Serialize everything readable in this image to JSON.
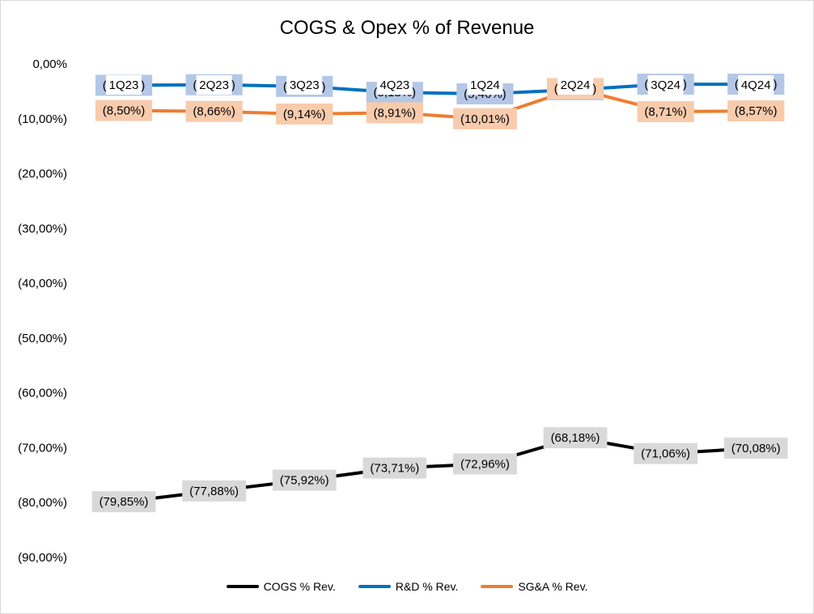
{
  "chart_data": {
    "type": "line",
    "title": "COGS & Opex % of Revenue",
    "categories": [
      "1Q23",
      "2Q23",
      "3Q23",
      "4Q23",
      "1Q24",
      "2Q24",
      "3Q24",
      "4Q24"
    ],
    "y_ticks": [
      "0,00%",
      "(10,00%)",
      "(20,00%)",
      "(30,00%)",
      "(40,00%)",
      "(50,00%)",
      "(60,00%)",
      "(70,00%)",
      "(80,00%)",
      "(90,00%)"
    ],
    "ylim": [
      -90,
      0
    ],
    "grid": false,
    "legend_position": "bottom",
    "series": [
      {
        "name": "COGS % Rev.",
        "color": "#000000",
        "label_bg": "#d9d9d9",
        "values": [
          -79.85,
          -77.88,
          -75.92,
          -73.71,
          -72.96,
          -68.18,
          -71.06,
          -70.08
        ],
        "labels": [
          "(79,85%)",
          "(77,88%)",
          "(75,92%)",
          "(73,71%)",
          "(72,96%)",
          "(68,18%)",
          "(71,06%)",
          "(70,08%)"
        ]
      },
      {
        "name": "R&D % Rev.",
        "color": "#0070c0",
        "label_bg": "#b4c7e7",
        "values": [
          -3.9,
          -3.8,
          -4.1,
          -5.18,
          -5.46,
          -4.7,
          -3.7,
          -3.7
        ],
        "labels": [
          "(3,90%)",
          "(3,80%)",
          "(4,10%)",
          "(5,18%)",
          "(5,46%)",
          "(4,70%)",
          "(3,70%)",
          "(3,70%)"
        ]
      },
      {
        "name": "SG&A % Rev.",
        "color": "#ed7d31",
        "label_bg": "#f8cbad",
        "values": [
          -8.5,
          -8.66,
          -9.14,
          -8.91,
          -10.01,
          -4.5,
          -8.71,
          -8.57
        ],
        "labels": [
          "(8,50%)",
          "(8,66%)",
          "(9,14%)",
          "(8,91%)",
          "(10,01%)",
          "(4,50%)",
          "(8,71%)",
          "(8,57%)"
        ]
      }
    ]
  }
}
